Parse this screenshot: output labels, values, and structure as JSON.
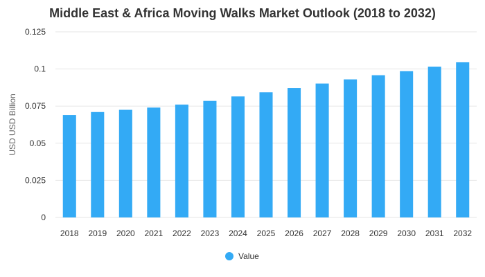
{
  "chart_data": {
    "type": "bar",
    "title": "Middle East & Africa Moving Walks Market Outlook (2018 to 2032)",
    "xlabel": "",
    "ylabel": "USD USD Billion",
    "categories": [
      "2018",
      "2019",
      "2020",
      "2021",
      "2022",
      "2023",
      "2024",
      "2025",
      "2026",
      "2027",
      "2028",
      "2029",
      "2030",
      "2031",
      "2032"
    ],
    "series": [
      {
        "name": "Value",
        "values": [
          0.069,
          0.071,
          0.0725,
          0.074,
          0.076,
          0.0785,
          0.0815,
          0.0843,
          0.0872,
          0.0902,
          0.093,
          0.0958,
          0.0985,
          0.1015,
          0.1045
        ],
        "color": "#33aaf5"
      }
    ],
    "ylim": [
      0,
      0.125
    ],
    "yticks": [
      0,
      0.025,
      0.05,
      0.075,
      0.1,
      0.125
    ],
    "ytick_labels": [
      "0",
      "0.025",
      "0.05",
      "0.075",
      "0.1",
      "0.125"
    ],
    "grid": true,
    "legend_position": "bottom-center"
  }
}
